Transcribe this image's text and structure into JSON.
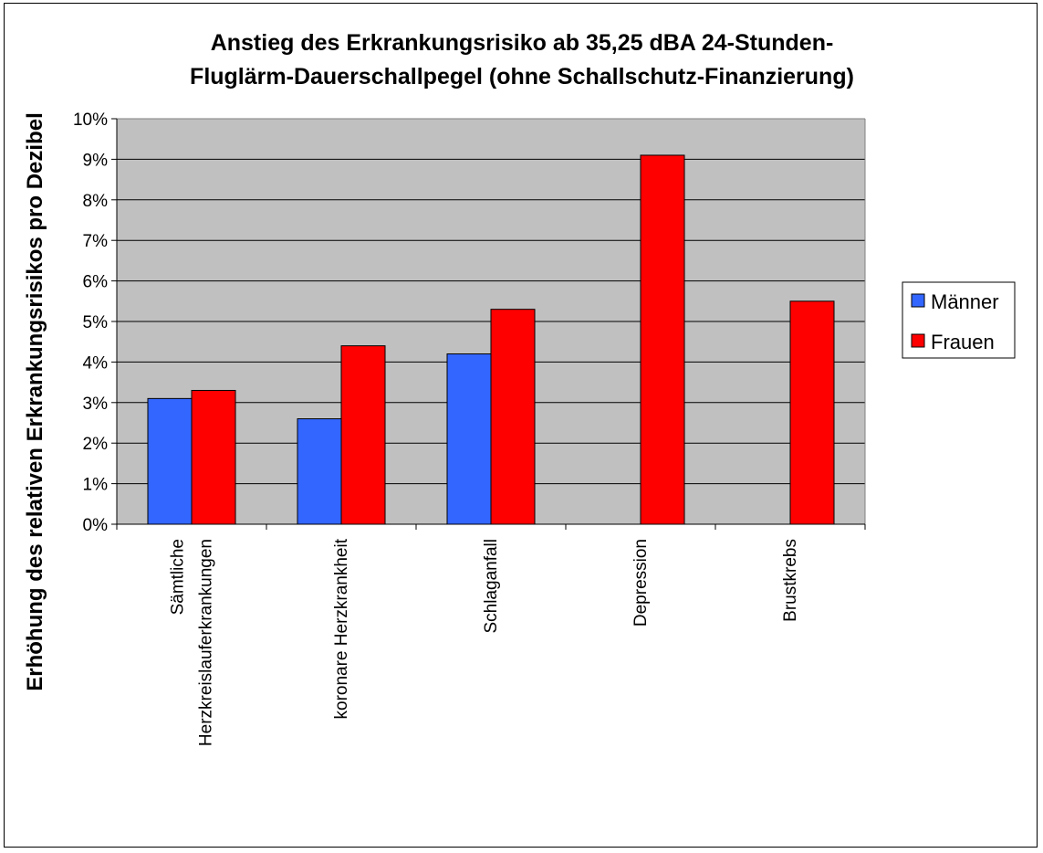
{
  "chart_data": {
    "type": "bar",
    "title_lines": [
      "Anstieg des Erkrankungsrisiko ab 35,25 dBA 24-Stunden-",
      "Fluglärm-Dauerschallpegel (ohne Schallschutz-Finanzierung)"
    ],
    "ylabel": "Erhöhung des relativen Erkrankungsrisikos pro Dezibel",
    "xlabel": "",
    "categories": [
      [
        "Sämtliche",
        "Herzkreislauferkrankungen"
      ],
      [
        "koronare Herzkrankheit"
      ],
      [
        "Schlaganfall"
      ],
      [
        "Depression"
      ],
      [
        "Brustkrebs"
      ]
    ],
    "series": [
      {
        "name": "Männer",
        "color": "#3366ff",
        "values": [
          3.1,
          2.6,
          4.2,
          null,
          null
        ]
      },
      {
        "name": "Frauen",
        "color": "#ff0000",
        "values": [
          3.3,
          4.4,
          5.3,
          9.1,
          5.5
        ]
      }
    ],
    "ylim": [
      0,
      10
    ],
    "y_ticks": [
      "0%",
      "1%",
      "2%",
      "3%",
      "4%",
      "5%",
      "6%",
      "7%",
      "8%",
      "9%",
      "10%"
    ],
    "y_unit": "%",
    "grid": true,
    "plot_background": "#c0c0c0",
    "legend_position": "right"
  }
}
